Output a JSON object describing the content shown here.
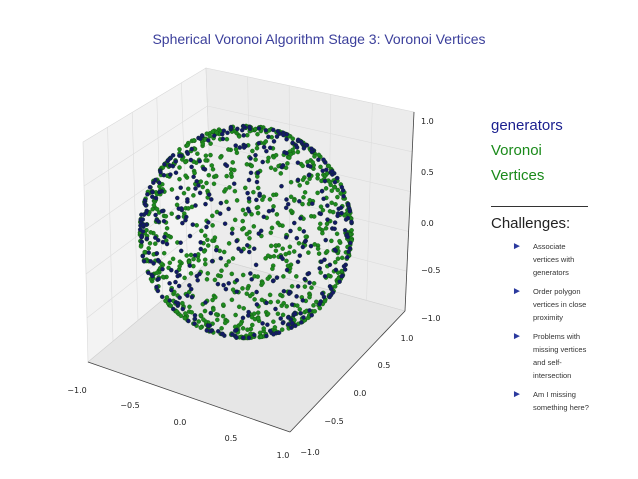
{
  "chart_data": {
    "type": "scatter",
    "title": "Spherical Voronoi Algorithm Stage 3: Voronoi Vertices",
    "series": [
      {
        "name": "generators",
        "color": "#141966",
        "description_count": 800
      },
      {
        "name": "Voronoi Vertices",
        "color": "#1e8a1e",
        "description_count": 1600
      }
    ],
    "x_ticks": [
      "−1.0",
      "−0.5",
      "0.0",
      "0.5",
      "1.0"
    ],
    "y_ticks": [
      "1.0",
      "0.5",
      "0.0",
      "−0.5",
      "−1.0"
    ],
    "z_ticks": [
      "1.0",
      "0.5",
      "0.0",
      "−0.5",
      "−1.0"
    ],
    "xlim": [
      -1,
      1
    ],
    "ylim": [
      -1,
      1
    ],
    "zlim": [
      -1,
      1
    ],
    "grid": true,
    "legend_position": "right"
  },
  "legend": {
    "generators": "generators",
    "voronoi": "Voronoi",
    "vertices": "Vertices"
  },
  "challenges": {
    "title": "Challenges:",
    "arrow": "►",
    "items": [
      "Associate vertices with generators",
      "Order polygon vertices in close proximity",
      "Problems with missing vertices and self-intersection",
      "Am I missing something here?"
    ]
  }
}
